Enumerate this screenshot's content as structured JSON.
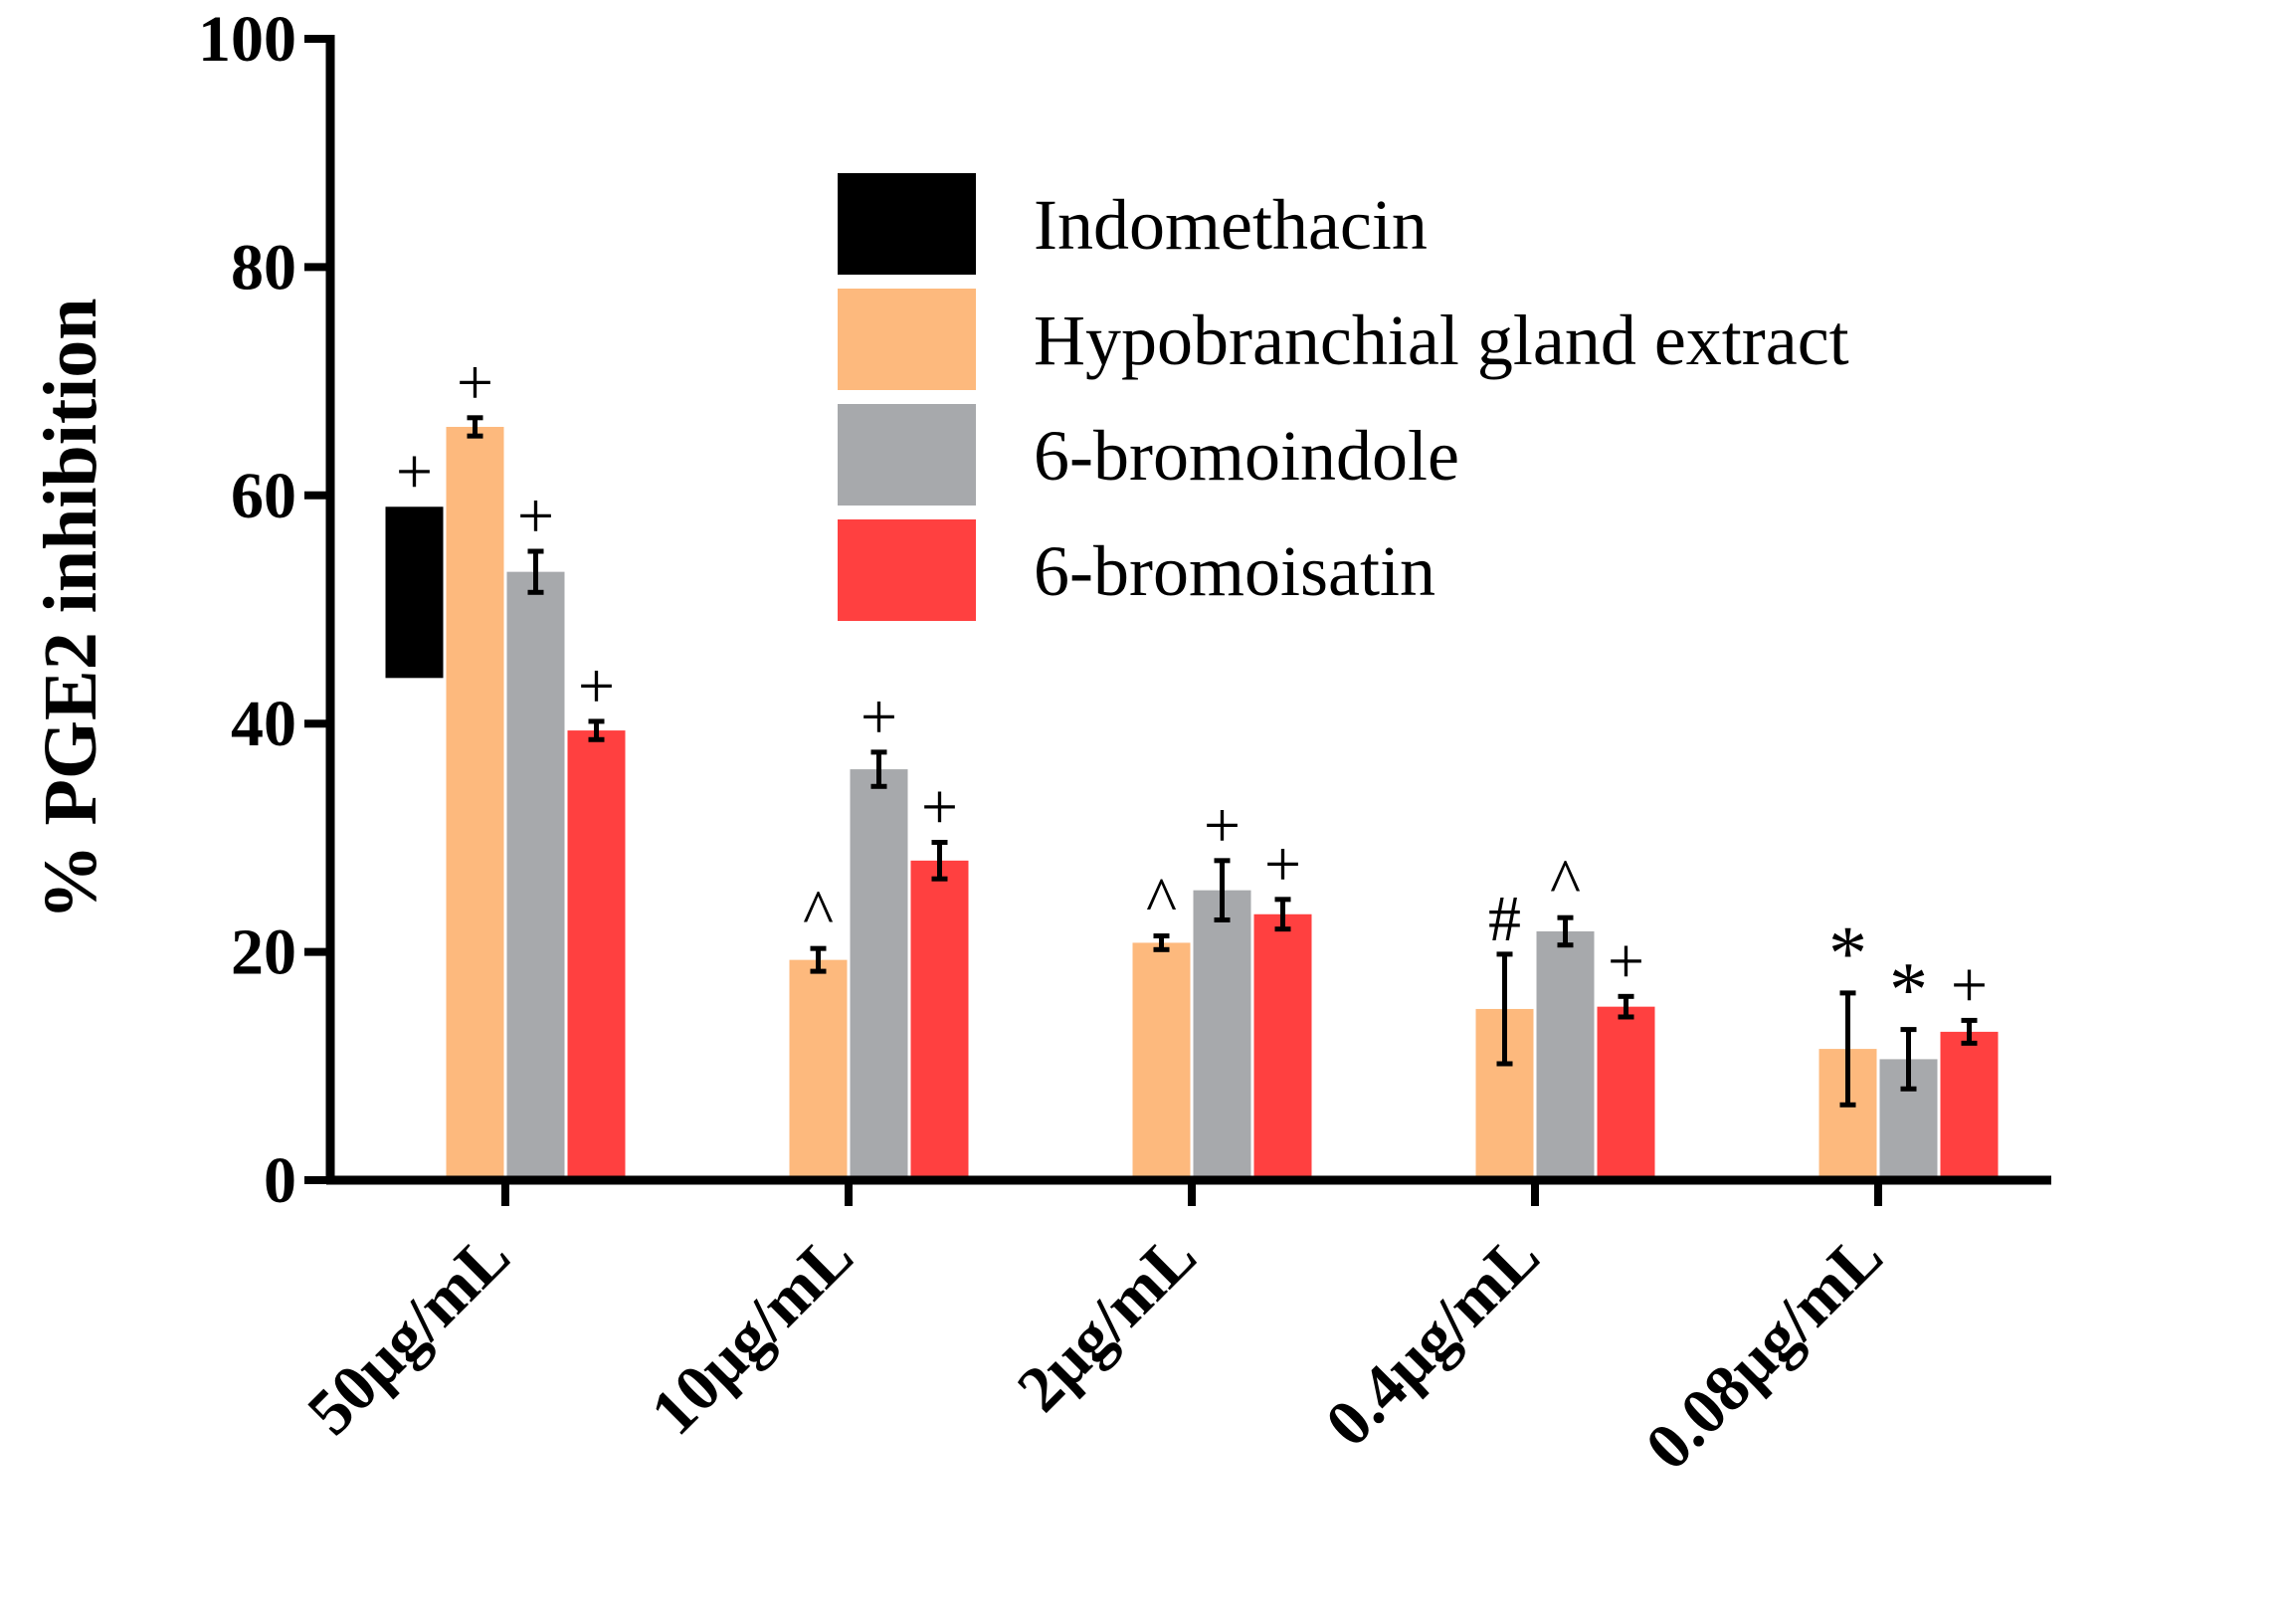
{
  "chart_data": {
    "type": "bar",
    "ylabel": "% PGE2 inhibition",
    "xlabel": "",
    "ylim": [
      0,
      100
    ],
    "yticks": [
      0,
      20,
      40,
      60,
      80,
      100
    ],
    "categories": [
      "50μg/mL",
      "10μg/mL",
      "2μg/mL",
      "0.4μg/mL",
      "0.08μg/mL"
    ],
    "legend_position": "top-right",
    "series": [
      {
        "name": "Indomethacin",
        "color": "#000000",
        "floating": true,
        "values": [
          [
            44,
            59
          ],
          null,
          null,
          null,
          null
        ],
        "errors": [
          null,
          null,
          null,
          null,
          null
        ],
        "marks": [
          "+",
          "",
          "",
          "",
          ""
        ]
      },
      {
        "name": "Hypobranchial gland extract",
        "color": "#FDB97D",
        "values": [
          66,
          19.3,
          20.8,
          15,
          11.5
        ],
        "errors": [
          0.8,
          1.0,
          0.6,
          4.8,
          4.9
        ],
        "marks": [
          "+",
          "^",
          "^",
          "#",
          "*"
        ]
      },
      {
        "name": "6-bromoindole",
        "color": "#A7A9AC",
        "values": [
          53.3,
          36,
          25.4,
          21.8,
          10.6
        ],
        "errors": [
          1.8,
          1.5,
          2.6,
          1.2,
          2.6
        ],
        "marks": [
          "+",
          "+",
          "+",
          "^",
          "*"
        ]
      },
      {
        "name": "6-bromoisatin",
        "color": "#FF4040",
        "values": [
          39.4,
          28,
          23.3,
          15.2,
          13
        ],
        "errors": [
          0.8,
          1.6,
          1.3,
          0.9,
          1.0
        ],
        "marks": [
          "+",
          "+",
          "+",
          "+",
          "+"
        ]
      }
    ]
  }
}
